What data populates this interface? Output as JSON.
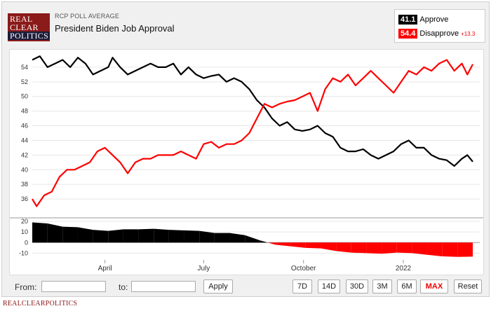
{
  "header": {
    "logo_lines": [
      "REAL",
      "CLEAR",
      "POLITICS"
    ],
    "kicker": "RCP POLL AVERAGE",
    "title": "President Biden Job Approval"
  },
  "legend": {
    "approve_value": "41.1",
    "approve_label": "Approve",
    "disapprove_value": "54.4",
    "disapprove_label": "Disapprove",
    "spread": "+13.3",
    "approve_color": "#000000",
    "disapprove_color": "#ff0000"
  },
  "controls": {
    "from_label": "From:",
    "to_label": "to:",
    "apply_label": "Apply",
    "ranges": [
      "7D",
      "14D",
      "30D",
      "3M",
      "6M",
      "MAX"
    ],
    "active_range": "MAX",
    "reset_label": "Reset"
  },
  "footer": {
    "brand": "REALCLEARPOLITICS"
  },
  "chart_data": {
    "type": "line",
    "title": "President Biden Job Approval",
    "x_ticks": [
      "April",
      "July",
      "October",
      "2022"
    ],
    "x_tick_dates": [
      "2021-04-01",
      "2021-07-01",
      "2021-10-01",
      "2022-01-01"
    ],
    "x_range": [
      "2021-01-24",
      "2022-03-06"
    ],
    "main_panel": {
      "ylim": [
        34,
        56
      ],
      "y_ticks": [
        36,
        38,
        40,
        42,
        44,
        46,
        48,
        50,
        52,
        54
      ],
      "grid": true,
      "series": [
        {
          "name": "Approve",
          "color": "#000000",
          "points": [
            [
              "2021-01-24",
              55.0
            ],
            [
              "2021-01-31",
              55.5
            ],
            [
              "2021-02-07",
              54.0
            ],
            [
              "2021-02-14",
              54.5
            ],
            [
              "2021-02-21",
              55.0
            ],
            [
              "2021-02-28",
              54.0
            ],
            [
              "2021-03-07",
              55.3
            ],
            [
              "2021-03-14",
              54.5
            ],
            [
              "2021-03-21",
              53.0
            ],
            [
              "2021-03-28",
              53.5
            ],
            [
              "2021-04-04",
              54.0
            ],
            [
              "2021-04-08",
              55.3
            ],
            [
              "2021-04-15",
              54.0
            ],
            [
              "2021-04-22",
              53.0
            ],
            [
              "2021-04-29",
              53.5
            ],
            [
              "2021-05-06",
              54.0
            ],
            [
              "2021-05-13",
              54.5
            ],
            [
              "2021-05-20",
              54.0
            ],
            [
              "2021-05-27",
              54.0
            ],
            [
              "2021-06-03",
              54.5
            ],
            [
              "2021-06-10",
              53.0
            ],
            [
              "2021-06-17",
              54.0
            ],
            [
              "2021-06-24",
              53.0
            ],
            [
              "2021-07-01",
              52.5
            ],
            [
              "2021-07-08",
              52.8
            ],
            [
              "2021-07-15",
              53.0
            ],
            [
              "2021-07-22",
              52.0
            ],
            [
              "2021-07-29",
              52.5
            ],
            [
              "2021-08-05",
              52.0
            ],
            [
              "2021-08-12",
              51.0
            ],
            [
              "2021-08-19",
              49.5
            ],
            [
              "2021-08-26",
              48.5
            ],
            [
              "2021-09-02",
              47.0
            ],
            [
              "2021-09-09",
              46.0
            ],
            [
              "2021-09-16",
              46.5
            ],
            [
              "2021-09-23",
              45.5
            ],
            [
              "2021-09-30",
              45.3
            ],
            [
              "2021-10-07",
              45.5
            ],
            [
              "2021-10-14",
              46.0
            ],
            [
              "2021-10-21",
              45.0
            ],
            [
              "2021-10-28",
              44.5
            ],
            [
              "2021-11-04",
              43.0
            ],
            [
              "2021-11-11",
              42.5
            ],
            [
              "2021-11-18",
              42.5
            ],
            [
              "2021-11-25",
              42.8
            ],
            [
              "2021-12-02",
              42.0
            ],
            [
              "2021-12-09",
              41.5
            ],
            [
              "2021-12-16",
              42.0
            ],
            [
              "2021-12-23",
              42.5
            ],
            [
              "2021-12-30",
              43.5
            ],
            [
              "2022-01-06",
              44.0
            ],
            [
              "2022-01-13",
              43.0
            ],
            [
              "2022-01-20",
              43.0
            ],
            [
              "2022-01-27",
              42.0
            ],
            [
              "2022-02-03",
              41.5
            ],
            [
              "2022-02-10",
              41.3
            ],
            [
              "2022-02-17",
              40.5
            ],
            [
              "2022-02-24",
              41.5
            ],
            [
              "2022-03-01",
              42.0
            ],
            [
              "2022-03-06",
              41.1
            ]
          ]
        },
        {
          "name": "Disapprove",
          "color": "#ff0000",
          "points": [
            [
              "2021-01-24",
              36.0
            ],
            [
              "2021-01-28",
              35.0
            ],
            [
              "2021-02-04",
              36.5
            ],
            [
              "2021-02-11",
              37.0
            ],
            [
              "2021-02-18",
              39.0
            ],
            [
              "2021-02-25",
              40.0
            ],
            [
              "2021-03-04",
              40.0
            ],
            [
              "2021-03-11",
              40.5
            ],
            [
              "2021-03-18",
              41.0
            ],
            [
              "2021-03-25",
              42.5
            ],
            [
              "2021-04-01",
              43.0
            ],
            [
              "2021-04-08",
              42.0
            ],
            [
              "2021-04-15",
              41.0
            ],
            [
              "2021-04-22",
              39.5
            ],
            [
              "2021-04-29",
              41.0
            ],
            [
              "2021-05-06",
              41.5
            ],
            [
              "2021-05-13",
              41.5
            ],
            [
              "2021-05-20",
              42.0
            ],
            [
              "2021-05-27",
              42.0
            ],
            [
              "2021-06-03",
              42.0
            ],
            [
              "2021-06-10",
              42.5
            ],
            [
              "2021-06-17",
              42.0
            ],
            [
              "2021-06-24",
              41.5
            ],
            [
              "2021-07-01",
              43.5
            ],
            [
              "2021-07-08",
              43.8
            ],
            [
              "2021-07-15",
              43.0
            ],
            [
              "2021-07-22",
              43.5
            ],
            [
              "2021-07-29",
              43.5
            ],
            [
              "2021-08-05",
              44.0
            ],
            [
              "2021-08-12",
              45.0
            ],
            [
              "2021-08-19",
              47.0
            ],
            [
              "2021-08-26",
              49.0
            ],
            [
              "2021-09-02",
              48.5
            ],
            [
              "2021-09-09",
              49.0
            ],
            [
              "2021-09-16",
              49.3
            ],
            [
              "2021-09-23",
              49.5
            ],
            [
              "2021-09-30",
              50.0
            ],
            [
              "2021-10-07",
              50.5
            ],
            [
              "2021-10-14",
              48.0
            ],
            [
              "2021-10-21",
              51.0
            ],
            [
              "2021-10-28",
              52.5
            ],
            [
              "2021-11-04",
              52.0
            ],
            [
              "2021-11-11",
              53.0
            ],
            [
              "2021-11-18",
              51.5
            ],
            [
              "2021-11-25",
              52.5
            ],
            [
              "2021-12-02",
              53.5
            ],
            [
              "2021-12-09",
              52.5
            ],
            [
              "2021-12-16",
              51.5
            ],
            [
              "2021-12-23",
              50.5
            ],
            [
              "2021-12-30",
              52.0
            ],
            [
              "2022-01-06",
              53.5
            ],
            [
              "2022-01-13",
              53.0
            ],
            [
              "2022-01-20",
              54.0
            ],
            [
              "2022-01-27",
              53.5
            ],
            [
              "2022-02-03",
              54.5
            ],
            [
              "2022-02-10",
              55.0
            ],
            [
              "2022-02-17",
              53.5
            ],
            [
              "2022-02-24",
              54.5
            ],
            [
              "2022-03-01",
              53.0
            ],
            [
              "2022-03-06",
              54.4
            ]
          ]
        }
      ]
    },
    "spread_panel": {
      "ylim": [
        -15,
        22
      ],
      "y_ticks": [
        20,
        10,
        0,
        -10
      ],
      "points": [
        [
          "2021-01-24",
          19.0
        ],
        [
          "2021-02-07",
          18.0
        ],
        [
          "2021-02-21",
          15.0
        ],
        [
          "2021-03-07",
          14.5
        ],
        [
          "2021-03-21",
          12.0
        ],
        [
          "2021-04-04",
          11.0
        ],
        [
          "2021-04-18",
          12.5
        ],
        [
          "2021-05-02",
          12.5
        ],
        [
          "2021-05-16",
          13.0
        ],
        [
          "2021-05-30",
          12.0
        ],
        [
          "2021-06-13",
          11.5
        ],
        [
          "2021-06-27",
          11.0
        ],
        [
          "2021-07-11",
          9.0
        ],
        [
          "2021-07-25",
          9.0
        ],
        [
          "2021-08-08",
          7.0
        ],
        [
          "2021-08-22",
          2.0
        ],
        [
          "2021-09-05",
          -2.0
        ],
        [
          "2021-09-19",
          -3.5
        ],
        [
          "2021-10-03",
          -5.0
        ],
        [
          "2021-10-17",
          -5.5
        ],
        [
          "2021-10-31",
          -8.0
        ],
        [
          "2021-11-14",
          -9.5
        ],
        [
          "2021-11-28",
          -10.0
        ],
        [
          "2021-12-12",
          -10.5
        ],
        [
          "2021-12-26",
          -9.5
        ],
        [
          "2022-01-09",
          -10.0
        ],
        [
          "2022-01-23",
          -11.5
        ],
        [
          "2022-02-06",
          -13.0
        ],
        [
          "2022-02-20",
          -13.5
        ],
        [
          "2022-03-06",
          -13.3
        ]
      ]
    }
  }
}
